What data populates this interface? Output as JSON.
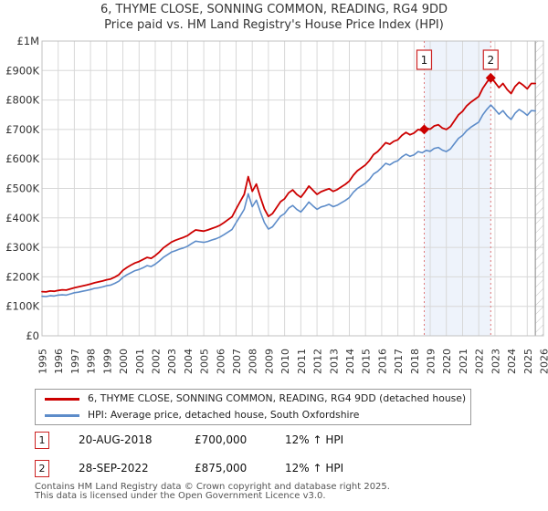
{
  "title": "6, THYME CLOSE, SONNING COMMON, READING, RG4 9DD",
  "subtitle": "Price paid vs. HM Land Registry's House Price Index (HPI)",
  "colors": {
    "property_line": "#cc0000",
    "hpi_line": "#5d8cc9",
    "grid": "#d8d8d8",
    "plot_border": "#c0c0c0",
    "shade": "#eef3fb",
    "sale_dashed_line": "#e07a7a",
    "marker_box_border": "#cc2222",
    "hatch": "#c4c4c4",
    "hatch_edge": "#999999",
    "axis_text": "#333333"
  },
  "chart_data": {
    "type": "line",
    "title": "6, THYME CLOSE, SONNING COMMON, READING, RG4 9DD — Price paid vs. HPI",
    "x_range": [
      1995,
      2026
    ],
    "y_range_gbp": [
      0,
      1000000
    ],
    "grid": true,
    "x_tick_labels": [
      "1995",
      "1996",
      "1997",
      "1998",
      "1999",
      "2000",
      "2001",
      "2002",
      "2003",
      "2004",
      "2005",
      "2006",
      "2007",
      "2008",
      "2009",
      "2010",
      "2011",
      "2012",
      "2013",
      "2014",
      "2015",
      "2016",
      "2017",
      "2018",
      "2019",
      "2020",
      "2021",
      "2022",
      "2023",
      "2024",
      "2025",
      "2026"
    ],
    "y_tick_labels": [
      "£1M",
      "£900K",
      "£800K",
      "£700K",
      "£600K",
      "£500K",
      "£400K",
      "£300K",
      "£200K",
      "£100K",
      "£0"
    ],
    "x_start": 1995.0,
    "x_step": 0.25,
    "series": [
      {
        "name": "6, THYME CLOSE, SONNING COMMON, READING, RG4 9DD (detached house)",
        "color": "#cc0000",
        "width": 1.8,
        "values_gbp_k": [
          150,
          149,
          152,
          151,
          154,
          156,
          155,
          159,
          163,
          166,
          169,
          172,
          176,
          180,
          183,
          186,
          190,
          193,
          199,
          207,
          222,
          232,
          240,
          247,
          252,
          259,
          266,
          263,
          272,
          284,
          298,
          308,
          318,
          324,
          329,
          334,
          340,
          350,
          359,
          357,
          355,
          359,
          364,
          369,
          375,
          384,
          394,
          404,
          430,
          455,
          480,
          540,
          490,
          515,
          470,
          430,
          405,
          415,
          435,
          455,
          465,
          485,
          495,
          480,
          470,
          488,
          508,
          494,
          480,
          489,
          494,
          499,
          490,
          496,
          505,
          514,
          525,
          545,
          560,
          570,
          580,
          595,
          615,
          625,
          640,
          655,
          650,
          660,
          665,
          680,
          690,
          682,
          688,
          700,
          696,
          705,
          701,
          712,
          716,
          705,
          700,
          710,
          730,
          750,
          762,
          780,
          792,
          802,
          812,
          840,
          860,
          877,
          860,
          842,
          856,
          836,
          822,
          846,
          860,
          850,
          838,
          856,
          856
        ]
      },
      {
        "name": "HPI: Average price, detached house, South Oxfordshire",
        "color": "#5d8cc9",
        "width": 1.6,
        "values_gbp_k": [
          134,
          133,
          136,
          135,
          138,
          139,
          138,
          142,
          146,
          148,
          151,
          154,
          157,
          161,
          163,
          166,
          170,
          172,
          178,
          185,
          198,
          207,
          214,
          221,
          225,
          231,
          238,
          235,
          243,
          254,
          266,
          275,
          284,
          289,
          294,
          298,
          304,
          313,
          321,
          319,
          317,
          320,
          325,
          329,
          335,
          343,
          352,
          361,
          384,
          406,
          429,
          482,
          438,
          460,
          420,
          384,
          362,
          370,
          388,
          406,
          415,
          433,
          442,
          429,
          420,
          436,
          454,
          441,
          429,
          437,
          441,
          446,
          438,
          443,
          451,
          459,
          469,
          487,
          500,
          509,
          518,
          531,
          549,
          558,
          571,
          585,
          580,
          589,
          594,
          607,
          616,
          609,
          614,
          625,
          621,
          629,
          626,
          636,
          639,
          630,
          625,
          634,
          652,
          670,
          680,
          696,
          707,
          716,
          725,
          750,
          768,
          783,
          768,
          752,
          764,
          746,
          734,
          755,
          768,
          759,
          748,
          764,
          763
        ]
      }
    ],
    "sale_markers": [
      {
        "num": "1",
        "x": 2018.63,
        "value_gbp_k": 700
      },
      {
        "num": "2",
        "x": 2022.74,
        "value_gbp_k": 875
      }
    ],
    "shaded_region_x": [
      2018.63,
      2022.74
    ],
    "hatched_region_x": [
      2025.5,
      2026
    ],
    "legend_position": "bottom"
  },
  "legend": {
    "items": [
      {
        "label": "6, THYME CLOSE, SONNING COMMON, READING, RG4 9DD (detached house)"
      },
      {
        "label": "HPI: Average price, detached house, South Oxfordshire"
      }
    ]
  },
  "annotations": [
    {
      "num": "1",
      "date": "20-AUG-2018",
      "price": "£700,000",
      "hpi": "12% ↑ HPI"
    },
    {
      "num": "2",
      "date": "28-SEP-2022",
      "price": "£875,000",
      "hpi": "12% ↑ HPI"
    }
  ],
  "footer": {
    "line1": "Contains HM Land Registry data © Crown copyright and database right 2025.",
    "line2": "This data is licensed under the Open Government Licence v3.0."
  }
}
